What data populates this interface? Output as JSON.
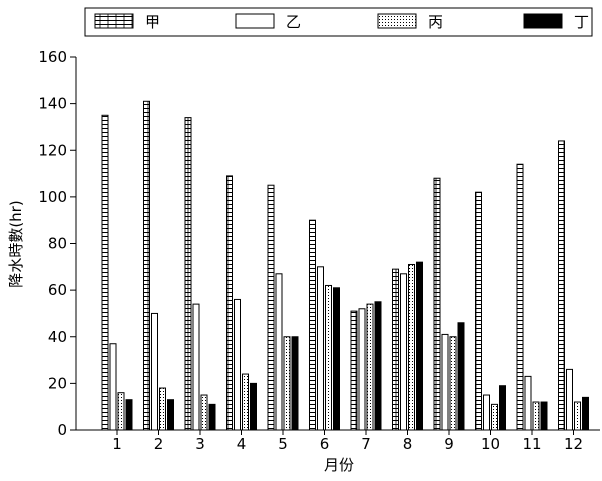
{
  "chart_data": {
    "type": "bar",
    "categories": [
      "1",
      "2",
      "3",
      "4",
      "5",
      "6",
      "7",
      "8",
      "9",
      "10",
      "11",
      "12"
    ],
    "series": [
      {
        "name": "甲",
        "values": [
          135,
          141,
          134,
          109,
          105,
          90,
          51,
          69,
          108,
          102,
          114,
          124
        ],
        "pattern": "brick"
      },
      {
        "name": "乙",
        "values": [
          37,
          50,
          54,
          56,
          67,
          70,
          52,
          67,
          41,
          15,
          23,
          26
        ],
        "pattern": "white"
      },
      {
        "name": "丙",
        "values": [
          16,
          18,
          15,
          24,
          40,
          62,
          54,
          71,
          40,
          11,
          12,
          12
        ],
        "pattern": "dotted"
      },
      {
        "name": "丁",
        "values": [
          13,
          13,
          11,
          20,
          40,
          61,
          55,
          72,
          46,
          19,
          12,
          14
        ],
        "pattern": "black"
      }
    ],
    "xlabel": "月份",
    "ylabel": "降水時數(hr)",
    "ylim": [
      0,
      160
    ],
    "yticks": [
      0,
      20,
      40,
      60,
      80,
      100,
      120,
      140,
      160
    ],
    "legend_position": "top",
    "grid": false,
    "colors": {
      "bar_stroke": "#000000",
      "black_fill": "#000000",
      "white_fill": "#ffffff"
    }
  }
}
